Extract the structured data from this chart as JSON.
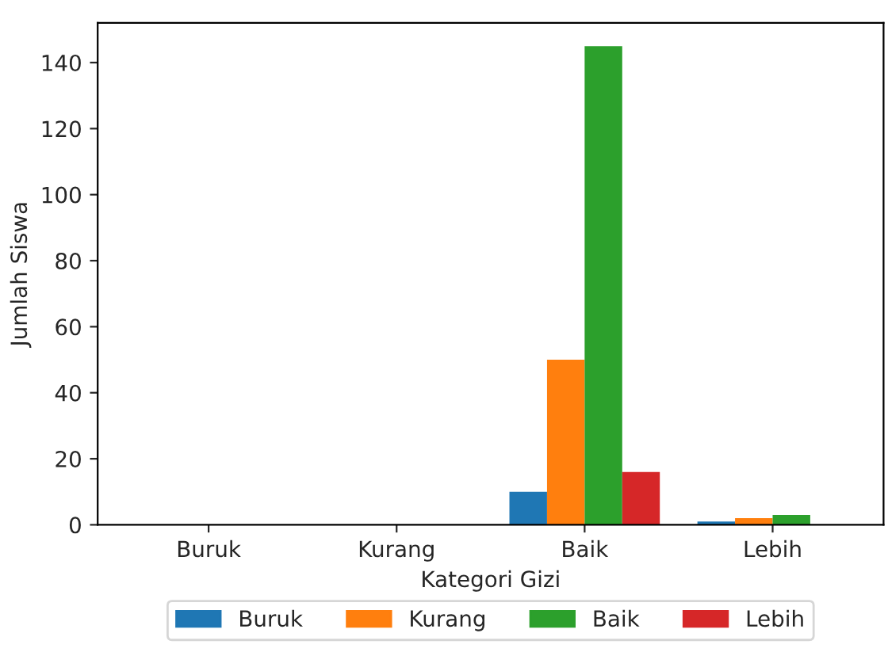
{
  "chart_data": {
    "type": "bar",
    "xlabel": "Kategori Gizi",
    "ylabel": "Jumlah Siswa",
    "categories": [
      "Buruk",
      "Kurang",
      "Baik",
      "Lebih"
    ],
    "series": [
      {
        "name": "Buruk",
        "color": "#1f77b4",
        "values": [
          0,
          0,
          10,
          1
        ]
      },
      {
        "name": "Kurang",
        "color": "#ff7f0e",
        "values": [
          0,
          0,
          50,
          2
        ]
      },
      {
        "name": "Baik",
        "color": "#2ca02c",
        "values": [
          0,
          0,
          145,
          3
        ]
      },
      {
        "name": "Lebih",
        "color": "#d62728",
        "values": [
          0,
          0,
          16,
          0
        ]
      }
    ],
    "ylim": [
      0,
      152
    ],
    "yticks": [
      0,
      20,
      40,
      60,
      80,
      100,
      120,
      140
    ],
    "grid": false,
    "legend": "bottom"
  }
}
